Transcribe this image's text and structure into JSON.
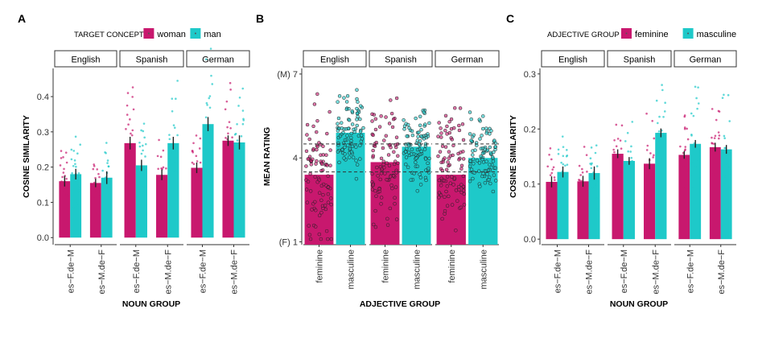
{
  "colors": {
    "woman": "#c8186e",
    "man": "#1ec9c9",
    "feminine": "#c8186e",
    "masculine": "#1ec9c9",
    "axis": "#333333",
    "strip_bg": "#ffffff"
  },
  "chart_data": [
    {
      "panel_label": "A",
      "type": "bar",
      "legend": {
        "title": "TARGET CONCEPT",
        "placement": "top",
        "entries": [
          "woman",
          "man"
        ]
      },
      "xlabel": "NOUN GROUP",
      "ylabel": "COSINE SIMILARITY",
      "ylim": [
        -0.02,
        0.48
      ],
      "yticks": [
        "0.0",
        "0.1",
        "0.2",
        "0.3",
        "0.4"
      ],
      "ytick_values": [
        0.0,
        0.1,
        0.2,
        0.3,
        0.4
      ],
      "facets": [
        {
          "name": "English",
          "categories": [
            "es−F.de−M",
            "es−M.de−F"
          ],
          "series": [
            {
              "name": "woman",
              "values": [
                0.16,
                0.155
              ]
            },
            {
              "name": "man",
              "values": [
                0.18,
                0.17
              ]
            }
          ],
          "errors": [
            [
              0.015,
              0.015
            ],
            [
              0.012,
              0.018
            ]
          ]
        },
        {
          "name": "Spanish",
          "categories": [
            "es−F.de−M",
            "es−M.de−F"
          ],
          "series": [
            {
              "name": "woman",
              "values": [
                0.268,
                0.178
              ]
            },
            {
              "name": "man",
              "values": [
                0.205,
                0.268
              ]
            }
          ],
          "errors": [
            [
              0.018,
              0.016
            ],
            [
              0.015,
              0.018
            ]
          ]
        },
        {
          "name": "German",
          "categories": [
            "es−F.de−M",
            "es−M.de−F"
          ],
          "series": [
            {
              "name": "woman",
              "values": [
                0.198,
                0.275
              ]
            },
            {
              "name": "man",
              "values": [
                0.322,
                0.27
              ]
            }
          ],
          "errors": [
            [
              0.015,
              0.02
            ],
            [
              0.015,
              0.02
            ]
          ]
        }
      ]
    },
    {
      "panel_label": "B",
      "type": "bar",
      "xlabel": "ADJECTIVE GROUP",
      "ylabel": "MEAN RATING",
      "ylim": [
        0.9,
        7.2
      ],
      "yticks": [
        "(F) 1",
        "4",
        "(M) 7"
      ],
      "ytick_values": [
        1,
        4,
        7
      ],
      "hlines": [
        3.5,
        4.5
      ],
      "facets": [
        {
          "name": "English",
          "categories": [
            "feminine",
            "masculine"
          ],
          "values": [
            3.4,
            4.9
          ]
        },
        {
          "name": "Spanish",
          "categories": [
            "feminine",
            "masculine"
          ],
          "values": [
            3.85,
            4.4
          ]
        },
        {
          "name": "German",
          "categories": [
            "feminine",
            "masculine"
          ],
          "values": [
            3.4,
            4.0
          ]
        }
      ]
    },
    {
      "panel_label": "C",
      "type": "bar",
      "legend": {
        "title": "ADJECTIVE GROUP",
        "placement": "top",
        "entries": [
          "feminine",
          "masculine"
        ]
      },
      "xlabel": "NOUN GROUP",
      "ylabel": "COSINE SIMILARITY",
      "ylim": [
        -0.01,
        0.31
      ],
      "yticks": [
        "0.0",
        "0.1",
        "0.2",
        "0.3"
      ],
      "ytick_values": [
        0.0,
        0.1,
        0.2,
        0.3
      ],
      "facets": [
        {
          "name": "English",
          "categories": [
            "es−F.de−M",
            "es−M.de−F"
          ],
          "series": [
            {
              "name": "feminine",
              "values": [
                0.104,
                0.105
              ]
            },
            {
              "name": "masculine",
              "values": [
                0.122,
                0.12
              ]
            }
          ],
          "errors": [
            [
              0.01,
              0.01
            ],
            [
              0.01,
              0.012
            ]
          ]
        },
        {
          "name": "Spanish",
          "categories": [
            "es−F.de−M",
            "es−M.de−F"
          ],
          "series": [
            {
              "name": "feminine",
              "values": [
                0.155,
                0.137
              ]
            },
            {
              "name": "masculine",
              "values": [
                0.142,
                0.193
              ]
            }
          ],
          "errors": [
            [
              0.008,
              0.007
            ],
            [
              0.01,
              0.008
            ]
          ]
        },
        {
          "name": "German",
          "categories": [
            "es−F.de−M",
            "es−M.de−F"
          ],
          "series": [
            {
              "name": "feminine",
              "values": [
                0.153,
                0.167
              ]
            },
            {
              "name": "masculine",
              "values": [
                0.173,
                0.163
              ]
            }
          ],
          "errors": [
            [
              0.007,
              0.007
            ],
            [
              0.008,
              0.008
            ]
          ]
        }
      ]
    }
  ]
}
